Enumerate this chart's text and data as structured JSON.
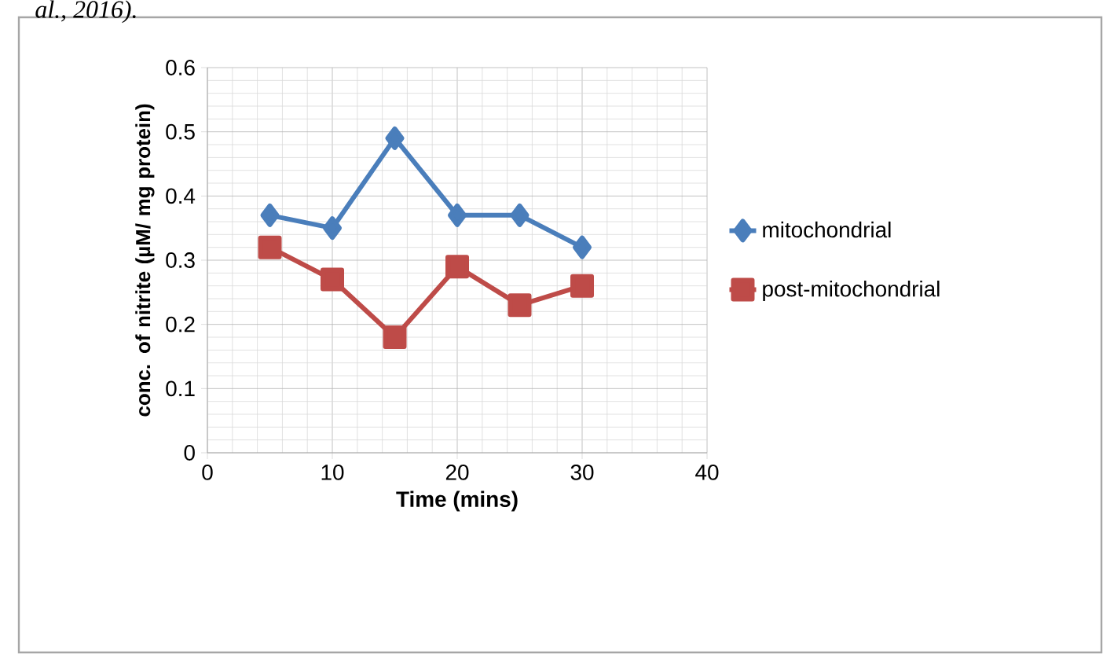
{
  "chart_data": {
    "type": "line",
    "xlabel": "Time (mins)",
    "ylabel": "conc. of nitrite (µM/ mg protein)",
    "annotations": [
      "al., 2016)."
    ],
    "x": [
      5,
      10,
      15,
      20,
      25,
      30
    ],
    "series": [
      {
        "name": "mitochondrial",
        "color": "#4a7ebb",
        "marker": "diamond",
        "values": [
          0.37,
          0.35,
          0.49,
          0.37,
          0.37,
          0.32
        ]
      },
      {
        "name": "post-mitochondrial",
        "color": "#be4b48",
        "marker": "square",
        "values": [
          0.32,
          0.27,
          0.18,
          0.29,
          0.23,
          0.26
        ]
      }
    ],
    "xlim": [
      0,
      40
    ],
    "xticks": [
      0,
      10,
      20,
      30,
      40
    ],
    "ylim": [
      0,
      0.6
    ],
    "yticks": [
      0,
      0.1,
      0.2,
      0.3,
      0.4,
      0.5,
      0.6
    ],
    "grid": true,
    "legend": "right",
    "line_style": "solid"
  }
}
